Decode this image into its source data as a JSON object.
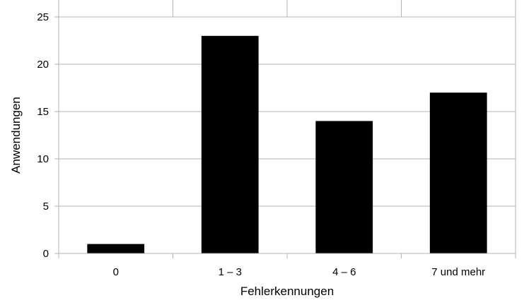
{
  "chart_data": {
    "type": "bar",
    "categories": [
      "0",
      "1 – 3",
      "4 – 6",
      "7 und mehr"
    ],
    "values": [
      1,
      23,
      14,
      17
    ],
    "xlabel": "Fehlerkennungen",
    "ylabel": "Anwendungen",
    "ylim": [
      0,
      25
    ],
    "yticks": [
      0,
      5,
      10,
      15,
      20,
      25
    ],
    "grid": true,
    "legend": "none",
    "bar_color": "#000000",
    "grid_color": "#b3b3b3"
  }
}
